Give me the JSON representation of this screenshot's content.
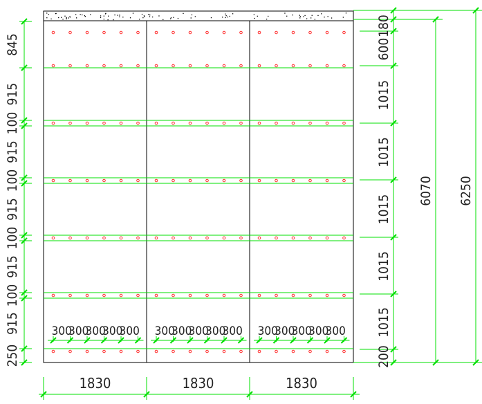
{
  "colors": {
    "dimension": "#00e000",
    "frame": "#000000",
    "anchor": "#ff3030",
    "background": "#ffffff"
  },
  "left_dims": [
    "845",
    "915",
    "100",
    "915",
    "100",
    "915",
    "100",
    "915",
    "100",
    "915",
    "250"
  ],
  "right_dims": [
    "180",
    "600",
    "1015",
    "1015",
    "1015",
    "1015",
    "1015",
    "200"
  ],
  "overall_dims": [
    "6070",
    "6250"
  ],
  "bay_widths": [
    "1830",
    "1830",
    "1830"
  ],
  "spacing_labels": [
    "300",
    "300",
    "300",
    "300",
    "300"
  ],
  "anchors_per_bay": 6
}
